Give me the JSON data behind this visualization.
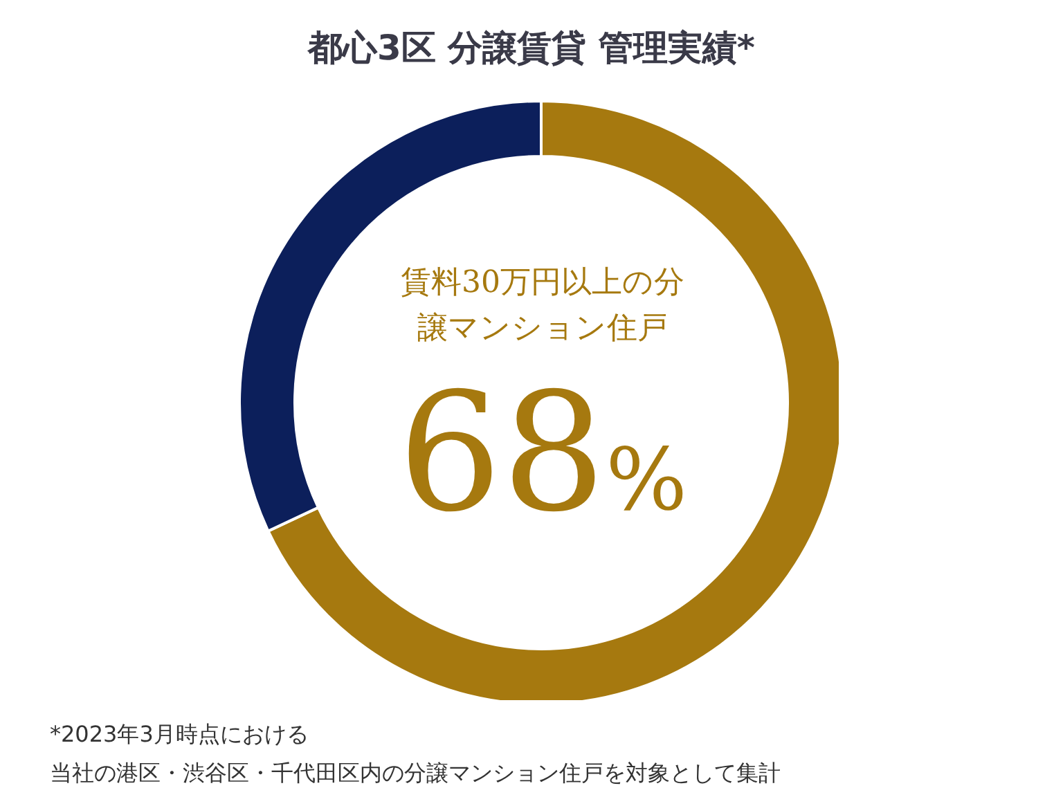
{
  "chart_data": {
    "type": "donut",
    "title": "都心3区 分譲賃貸 管理実績*",
    "categories": [
      "賃料30万円以上の分譲マンション住戸",
      null
    ],
    "values": [
      68,
      32
    ],
    "colors": [
      "#a6790f",
      "#0c1f5b"
    ],
    "value_labels": [
      "68%",
      null
    ],
    "legend": false,
    "annotations": [
      "*2023年3月時点における",
      "当社の港区・渋谷区・千代田区内の分譲マンション住戸を対象として集計"
    ]
  }
}
